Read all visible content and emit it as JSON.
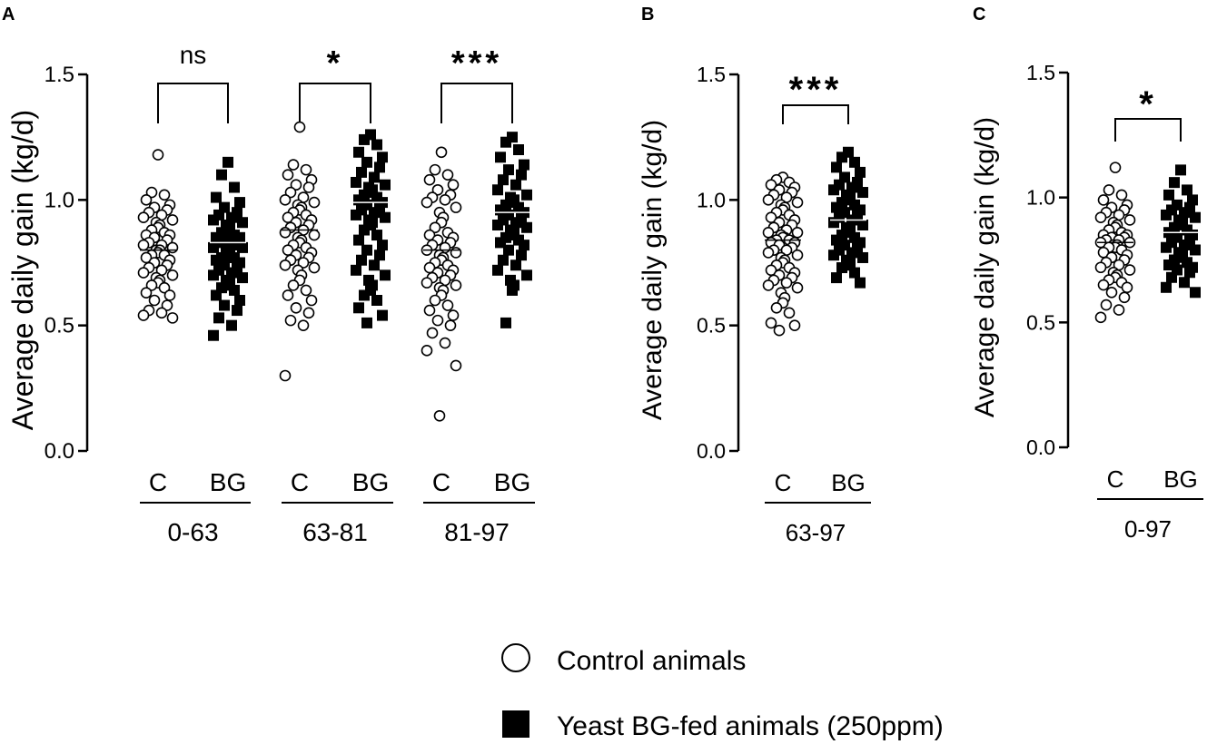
{
  "chart_data": [
    {
      "panel": "A",
      "type": "scatter",
      "ylabel": "Average daily gain (kg/d)",
      "ylim": [
        0,
        1.5
      ],
      "yticks": [
        "0.0",
        "0.5",
        "1.0",
        "1.5"
      ],
      "groups": [
        {
          "period": "0-63",
          "significance": "ns",
          "series": [
            {
              "name": "C",
              "mean": 0.8,
              "values": [
                1.18,
                1.03,
                1.02,
                1.0,
                0.98,
                0.97,
                0.96,
                0.95,
                0.94,
                0.93,
                0.92,
                0.91,
                0.9,
                0.89,
                0.88,
                0.87,
                0.86,
                0.86,
                0.85,
                0.84,
                0.83,
                0.82,
                0.82,
                0.81,
                0.8,
                0.8,
                0.79,
                0.78,
                0.78,
                0.77,
                0.76,
                0.75,
                0.74,
                0.73,
                0.72,
                0.71,
                0.7,
                0.69,
                0.68,
                0.67,
                0.66,
                0.65,
                0.63,
                0.62,
                0.6,
                0.58,
                0.56,
                0.55,
                0.54,
                0.53
              ]
            },
            {
              "name": "BG",
              "mean": 0.83,
              "values": [
                1.15,
                1.1,
                1.05,
                1.01,
                0.99,
                0.97,
                0.95,
                0.94,
                0.93,
                0.92,
                0.91,
                0.9,
                0.89,
                0.88,
                0.87,
                0.86,
                0.85,
                0.85,
                0.84,
                0.83,
                0.83,
                0.82,
                0.81,
                0.81,
                0.8,
                0.79,
                0.78,
                0.77,
                0.77,
                0.76,
                0.75,
                0.74,
                0.73,
                0.72,
                0.71,
                0.7,
                0.69,
                0.68,
                0.67,
                0.66,
                0.65,
                0.64,
                0.62,
                0.6,
                0.58,
                0.56,
                0.53,
                0.5,
                0.46
              ]
            }
          ]
        },
        {
          "period": "63-81",
          "significance": "*",
          "series": [
            {
              "name": "C",
              "mean": 0.88,
              "values": [
                1.29,
                1.14,
                1.12,
                1.1,
                1.08,
                1.06,
                1.05,
                1.03,
                1.01,
                1.0,
                0.99,
                0.98,
                0.97,
                0.96,
                0.95,
                0.94,
                0.93,
                0.92,
                0.91,
                0.9,
                0.89,
                0.88,
                0.87,
                0.86,
                0.85,
                0.84,
                0.83,
                0.82,
                0.81,
                0.8,
                0.79,
                0.78,
                0.77,
                0.76,
                0.75,
                0.74,
                0.73,
                0.72,
                0.7,
                0.68,
                0.66,
                0.64,
                0.62,
                0.6,
                0.57,
                0.55,
                0.52,
                0.5,
                0.3
              ]
            },
            {
              "name": "BG",
              "mean": 0.99,
              "values": [
                1.26,
                1.24,
                1.22,
                1.19,
                1.17,
                1.15,
                1.13,
                1.11,
                1.09,
                1.07,
                1.06,
                1.05,
                1.04,
                1.03,
                1.02,
                1.01,
                1.0,
                0.99,
                0.98,
                0.97,
                0.96,
                0.95,
                0.94,
                0.93,
                0.92,
                0.91,
                0.9,
                0.88,
                0.86,
                0.84,
                0.82,
                0.8,
                0.78,
                0.76,
                0.74,
                0.72,
                0.7,
                0.68,
                0.66,
                0.64,
                0.62,
                0.6,
                0.57,
                0.54,
                0.51
              ]
            }
          ]
        },
        {
          "period": "81-97",
          "significance": "***",
          "series": [
            {
              "name": "C",
              "mean": 0.8,
              "values": [
                1.19,
                1.12,
                1.1,
                1.08,
                1.06,
                1.04,
                1.02,
                1.01,
                1.0,
                0.99,
                0.97,
                0.95,
                0.93,
                0.91,
                0.89,
                0.87,
                0.86,
                0.85,
                0.84,
                0.83,
                0.82,
                0.81,
                0.8,
                0.79,
                0.78,
                0.77,
                0.76,
                0.75,
                0.74,
                0.73,
                0.72,
                0.71,
                0.7,
                0.69,
                0.68,
                0.67,
                0.66,
                0.65,
                0.64,
                0.62,
                0.6,
                0.58,
                0.56,
                0.54,
                0.52,
                0.5,
                0.47,
                0.43,
                0.4,
                0.34,
                0.14
              ]
            },
            {
              "name": "BG",
              "mean": 0.95,
              "values": [
                1.25,
                1.23,
                1.2,
                1.17,
                1.14,
                1.12,
                1.1,
                1.08,
                1.06,
                1.04,
                1.02,
                1.01,
                1.0,
                0.99,
                0.98,
                0.97,
                0.96,
                0.95,
                0.94,
                0.93,
                0.92,
                0.91,
                0.9,
                0.89,
                0.88,
                0.87,
                0.86,
                0.85,
                0.84,
                0.83,
                0.82,
                0.8,
                0.78,
                0.76,
                0.74,
                0.72,
                0.7,
                0.68,
                0.66,
                0.64,
                0.51
              ]
            }
          ]
        }
      ]
    },
    {
      "panel": "B",
      "type": "scatter",
      "ylabel": "Average daily gain (kg/d)",
      "ylim": [
        0,
        1.5
      ],
      "yticks": [
        "0.0",
        "0.5",
        "1.0",
        "1.5"
      ],
      "groups": [
        {
          "period": "63-97",
          "significance": "***",
          "series": [
            {
              "name": "C",
              "mean": 0.84,
              "values": [
                1.09,
                1.08,
                1.07,
                1.06,
                1.05,
                1.04,
                1.03,
                1.02,
                1.01,
                1.0,
                0.99,
                0.98,
                0.97,
                0.96,
                0.95,
                0.94,
                0.93,
                0.92,
                0.91,
                0.9,
                0.89,
                0.88,
                0.87,
                0.87,
                0.86,
                0.85,
                0.85,
                0.84,
                0.84,
                0.83,
                0.83,
                0.82,
                0.81,
                0.8,
                0.8,
                0.79,
                0.78,
                0.77,
                0.76,
                0.75,
                0.74,
                0.73,
                0.72,
                0.71,
                0.7,
                0.69,
                0.68,
                0.67,
                0.66,
                0.65,
                0.63,
                0.61,
                0.59,
                0.57,
                0.55,
                0.51,
                0.5,
                0.48
              ]
            },
            {
              "name": "BG",
              "mean": 0.92,
              "values": [
                1.19,
                1.17,
                1.15,
                1.13,
                1.11,
                1.09,
                1.07,
                1.06,
                1.05,
                1.04,
                1.03,
                1.02,
                1.01,
                1.0,
                0.99,
                0.98,
                0.97,
                0.96,
                0.95,
                0.94,
                0.93,
                0.92,
                0.91,
                0.9,
                0.89,
                0.88,
                0.87,
                0.86,
                0.85,
                0.84,
                0.83,
                0.82,
                0.81,
                0.8,
                0.79,
                0.78,
                0.77,
                0.76,
                0.75,
                0.74,
                0.73,
                0.71,
                0.69,
                0.67
              ]
            }
          ]
        }
      ]
    },
    {
      "panel": "C",
      "type": "scatter",
      "ylabel": "Average daily gain (kg/d)",
      "ylim": [
        0,
        1.5
      ],
      "yticks": [
        "0.0",
        "0.5",
        "1.0",
        "1.5"
      ],
      "groups": [
        {
          "period": "0-97",
          "significance": "*",
          "series": [
            {
              "name": "C",
              "mean": 0.82,
              "values": [
                1.12,
                1.03,
                1.01,
                0.99,
                0.97,
                0.96,
                0.95,
                0.94,
                0.93,
                0.92,
                0.91,
                0.9,
                0.89,
                0.88,
                0.87,
                0.86,
                0.85,
                0.85,
                0.84,
                0.84,
                0.83,
                0.83,
                0.82,
                0.82,
                0.81,
                0.81,
                0.8,
                0.8,
                0.79,
                0.78,
                0.77,
                0.76,
                0.75,
                0.74,
                0.73,
                0.72,
                0.71,
                0.7,
                0.69,
                0.68,
                0.67,
                0.66,
                0.65,
                0.64,
                0.62,
                0.6,
                0.57,
                0.55,
                0.52
              ]
            },
            {
              "name": "BG",
              "mean": 0.86,
              "values": [
                1.11,
                1.06,
                1.03,
                1.01,
                0.99,
                0.97,
                0.96,
                0.95,
                0.94,
                0.93,
                0.92,
                0.91,
                0.9,
                0.89,
                0.88,
                0.87,
                0.86,
                0.85,
                0.84,
                0.83,
                0.82,
                0.81,
                0.8,
                0.79,
                0.78,
                0.77,
                0.76,
                0.75,
                0.74,
                0.73,
                0.72,
                0.71,
                0.7,
                0.68,
                0.66,
                0.64,
                0.62
              ]
            }
          ]
        }
      ]
    }
  ],
  "legend": {
    "control": "Control animals",
    "treated": "Yeast BG-fed animals (250ppm)"
  },
  "colors": {
    "control_fill": "#ffffff",
    "treated_fill": "#000000",
    "axis": "#000000"
  }
}
